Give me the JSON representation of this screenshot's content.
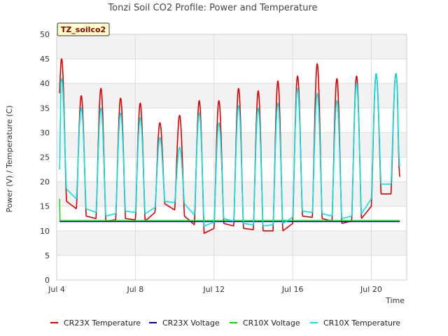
{
  "chart_data": {
    "type": "line",
    "title": "Tonzi Soil CO2 Profile: Power and Temperature",
    "xlabel": "Time",
    "ylabel": "Power (V) / Temperature (C)",
    "badge": "TZ_soilco2",
    "xlim": [
      0,
      17.8
    ],
    "ylim": [
      0,
      50
    ],
    "y_ticks": [
      0,
      5,
      10,
      15,
      20,
      25,
      30,
      35,
      40,
      45,
      50
    ],
    "x_ticks": [
      {
        "value": 0,
        "label": "Jul 4"
      },
      {
        "value": 4,
        "label": "Jul 8"
      },
      {
        "value": 8,
        "label": "Jul 12"
      },
      {
        "value": 12,
        "label": "Jul 16"
      },
      {
        "value": 16,
        "label": "Jul 20"
      }
    ],
    "x_unit": "days since Jul 4",
    "grid": true,
    "legend_position": "bottom",
    "series": [
      {
        "name": "CR23X Temperature",
        "color": "#dd0000",
        "daily": [
          {
            "min": 16.0,
            "max": 45.0
          },
          {
            "min": 13.0,
            "max": 37.5
          },
          {
            "min": 12.0,
            "max": 39.0
          },
          {
            "min": 12.5,
            "max": 37.0
          },
          {
            "min": 12.0,
            "max": 36.0
          },
          {
            "min": 15.5,
            "max": 32.0
          },
          {
            "min": 13.0,
            "max": 33.5
          },
          {
            "min": 9.5,
            "max": 36.5
          },
          {
            "min": 11.5,
            "max": 36.5
          },
          {
            "min": 10.5,
            "max": 39.0
          },
          {
            "min": 10.0,
            "max": 38.5
          },
          {
            "min": 10.0,
            "max": 40.5
          },
          {
            "min": 13.0,
            "max": 41.5
          },
          {
            "min": 12.5,
            "max": 44.0
          },
          {
            "min": 11.5,
            "max": 41.0
          },
          {
            "min": 12.5,
            "max": 41.5
          },
          {
            "min": 17.5,
            "max": 42.0
          }
        ],
        "end": 21.0
      },
      {
        "name": "CR23X Voltage",
        "color": "#000099",
        "constant": 11.9
      },
      {
        "name": "CR10X Voltage",
        "color": "#00dd00",
        "constant": 12.1,
        "start": 16.5
      },
      {
        "name": "CR10X Temperature",
        "color": "#00e5e5",
        "daily": [
          {
            "min": 18.5,
            "max": 41.0
          },
          {
            "min": 14.5,
            "max": 35.0
          },
          {
            "min": 13.0,
            "max": 35.0
          },
          {
            "min": 14.0,
            "max": 34.0
          },
          {
            "min": 13.5,
            "max": 33.0
          },
          {
            "min": 16.0,
            "max": 29.0
          },
          {
            "min": 15.5,
            "max": 27.0
          },
          {
            "min": 11.0,
            "max": 34.0
          },
          {
            "min": 12.5,
            "max": 32.0
          },
          {
            "min": 11.5,
            "max": 35.5
          },
          {
            "min": 11.0,
            "max": 35.0
          },
          {
            "min": 11.5,
            "max": 36.0
          },
          {
            "min": 14.0,
            "max": 39.0
          },
          {
            "min": 13.5,
            "max": 38.0
          },
          {
            "min": 12.5,
            "max": 36.5
          },
          {
            "min": 13.5,
            "max": 40.0
          },
          {
            "min": 19.5,
            "max": 42.0
          }
        ],
        "start": 22.5,
        "end": 23.0
      }
    ]
  }
}
